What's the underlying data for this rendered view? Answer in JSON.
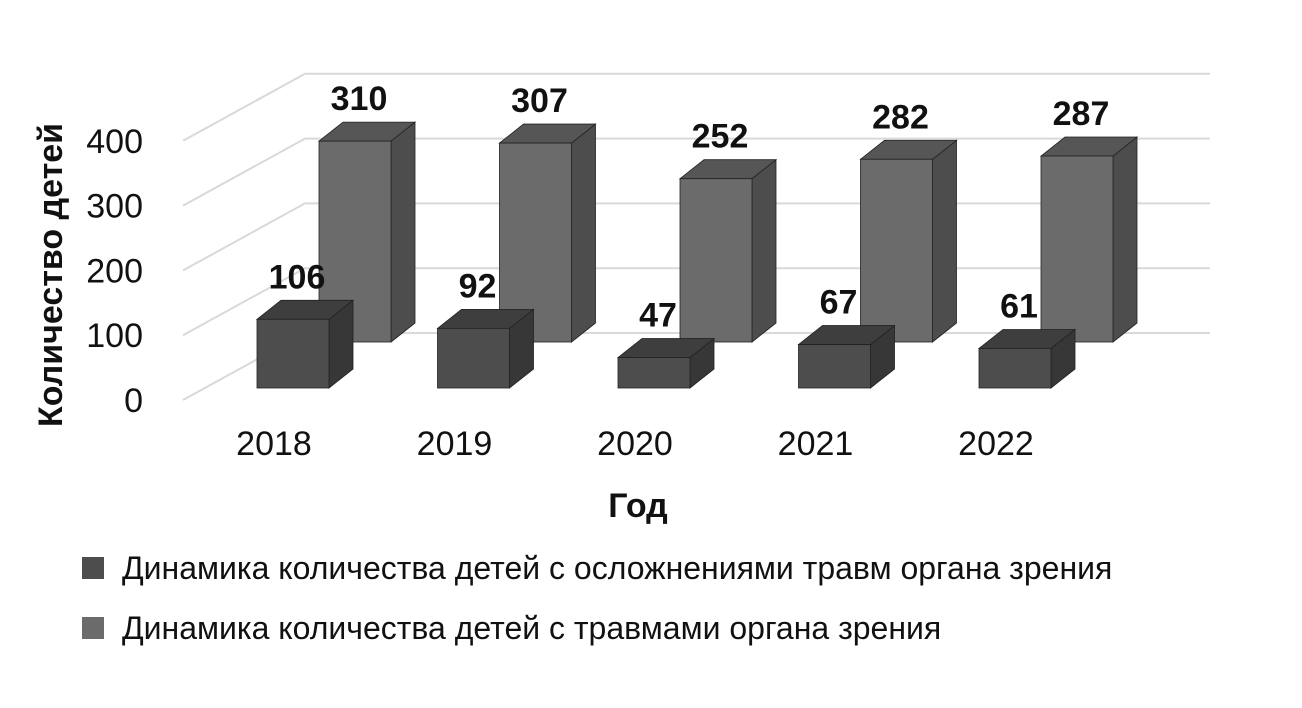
{
  "chart_data": {
    "type": "bar",
    "categories": [
      "2018",
      "2019",
      "2020",
      "2021",
      "2022"
    ],
    "series": [
      {
        "name": "Динамика количества детей с осложнениями травм органа зрения",
        "values": [
          106,
          92,
          47,
          67,
          61
        ],
        "color": "#4d4d4d"
      },
      {
        "name": "Динамика количества детей с травмами органа зрения",
        "values": [
          310,
          307,
          252,
          282,
          287
        ],
        "color": "#6b6b6b"
      }
    ],
    "xlabel": "Год",
    "ylabel": "Количество детей",
    "yticks": [
      "0",
      "100",
      "200",
      "300",
      "400"
    ],
    "ylim": [
      0,
      400
    ],
    "grid": true,
    "legend_position": "bottom",
    "style": "3d-clustered"
  }
}
